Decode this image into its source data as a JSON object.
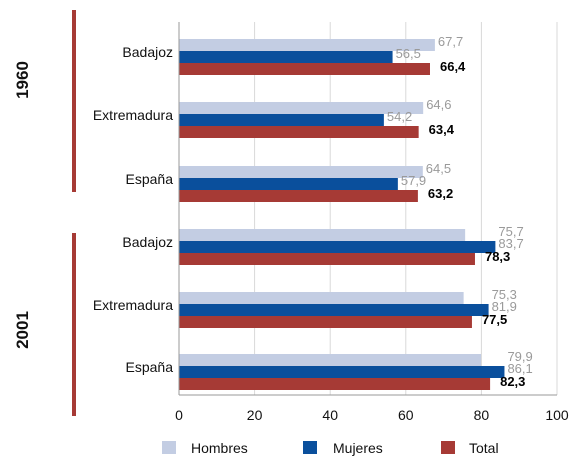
{
  "chart_data": {
    "type": "bar",
    "orientation": "horizontal",
    "groups": [
      {
        "name": "1960",
        "categories": [
          "Badajoz",
          "Extremadura",
          "España"
        ],
        "series": [
          {
            "name": "Hombres",
            "values": [
              67.7,
              64.6,
              64.5
            ],
            "labels": [
              "67,7",
              "64,6",
              "64,5"
            ]
          },
          {
            "name": "Mujeres",
            "values": [
              56.5,
              54.2,
              57.9
            ],
            "labels": [
              "56,5",
              "54,2",
              "57,9"
            ]
          },
          {
            "name": "Total",
            "values": [
              66.4,
              63.4,
              63.2
            ],
            "labels": [
              "66,4",
              "63,4",
              "63,2"
            ]
          }
        ]
      },
      {
        "name": "2001",
        "categories": [
          "Badajoz",
          "Extremadura",
          "España"
        ],
        "series": [
          {
            "name": "Hombres",
            "values": [
              75.7,
              75.3,
              79.9
            ],
            "labels": [
              "75,7",
              "75,3",
              "79,9"
            ]
          },
          {
            "name": "Mujeres",
            "values": [
              83.7,
              81.9,
              86.1
            ],
            "labels": [
              "83,7",
              "81,9",
              "86,1"
            ]
          },
          {
            "name": "Total",
            "values": [
              78.3,
              77.5,
              82.3
            ],
            "labels": [
              "78,3",
              "77,5",
              "82,3"
            ]
          }
        ]
      }
    ],
    "xlim": [
      0,
      100
    ],
    "xticks": [
      0,
      20,
      40,
      60,
      80,
      100
    ],
    "xtick_labels": [
      "0",
      "20",
      "40",
      "60",
      "80",
      "100"
    ],
    "grid": true,
    "legend": {
      "position": "bottom",
      "entries": [
        {
          "name": "Hombres",
          "color": "#c3cde3"
        },
        {
          "name": "Mujeres",
          "color": "#0a4f9c"
        },
        {
          "name": "Total",
          "color": "#a63a35"
        }
      ]
    },
    "colors": {
      "Hombres": "#c3cde3",
      "Mujeres": "#0a4f9c",
      "Total": "#a63a35"
    },
    "label_colors": {
      "Hombres": "#9a9a9a",
      "Mujeres": "#9a9a9a",
      "Total": "#000000"
    }
  }
}
